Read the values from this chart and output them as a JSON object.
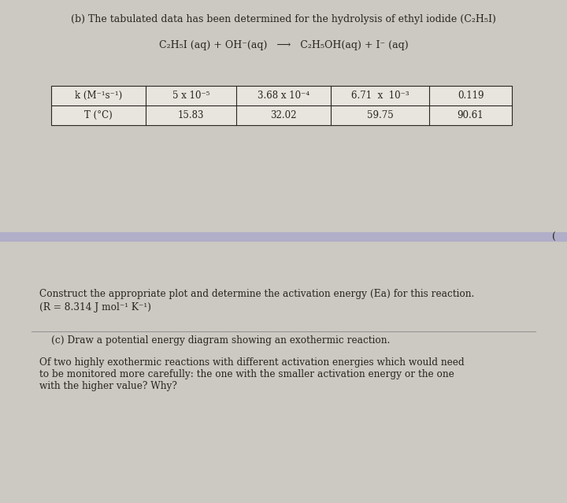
{
  "title_b": "(b) The tabulated data has been determined for the hydrolysis of ethyl iodide (C₂H₅I)",
  "equation": "C₂H₅I (aq) + OH⁻(aq)   ⟶   C₂H₅OH(aq) + I⁻ (aq)",
  "table_headers": [
    "k (M⁻¹s⁻¹)",
    "5 x 10⁻⁵",
    "3.68 x 10⁻⁴",
    "6.71  x  10⁻³",
    "0.119"
  ],
  "table_row2": [
    "T (°C)",
    "15.83",
    "32.02",
    "59.75",
    "90.61"
  ],
  "construct_line1": "Construct the appropriate plot and determine the activation energy (Ea) for this reaction.",
  "construct_line2": "(R = 8.314 J mol⁻¹ K⁻¹)",
  "part_c_title": "(c) Draw a potential energy diagram showing an exothermic reaction.",
  "part_c_body1": "Of two highly exothermic reactions with different activation energies which would need",
  "part_c_body2": "to be monitored more carefully: the one with the smaller activation energy or the one",
  "part_c_body3": "with the higher value? Why?",
  "bg_top": "#ccc8c2",
  "bg_bottom": "#d4d0c8",
  "separator_color": "#b0aec8",
  "text_color": "#2a2520",
  "table_bg": "#e8e4de",
  "fig_width": 7.2,
  "fig_height": 6.39,
  "dpi": 100
}
